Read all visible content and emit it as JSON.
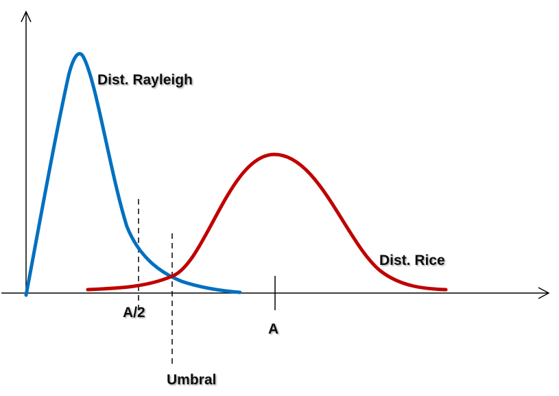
{
  "labels": {
    "rayleigh": "Dist. Rayleigh",
    "rice": "Dist. Rice",
    "half_a": "A/2",
    "a": "A",
    "threshold": "Umbral"
  },
  "colors": {
    "rayleigh": "#0070C0",
    "rice": "#C00000",
    "axis": "#000000"
  }
}
